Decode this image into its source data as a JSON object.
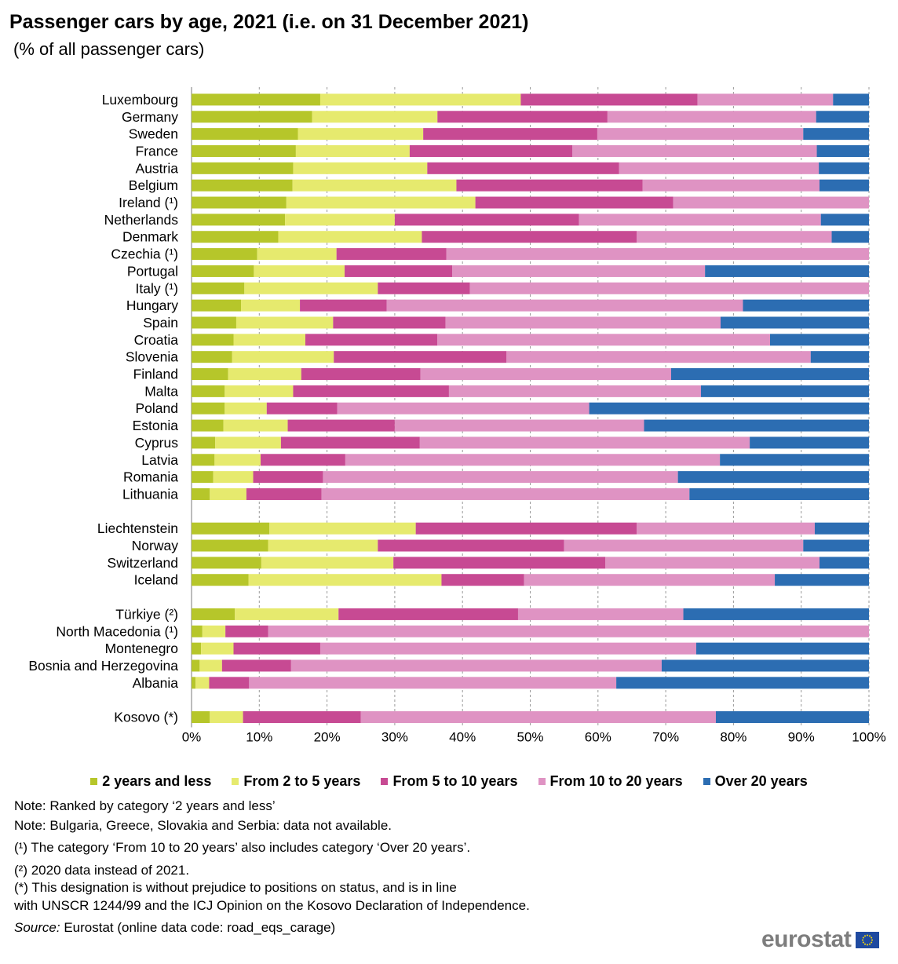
{
  "title": "Passenger cars by age, 2021 (i.e. on 31 December 2021)",
  "subtitle": "(% of all passenger cars)",
  "chart_data": {
    "type": "bar",
    "orientation": "horizontal",
    "stacked": true,
    "xlim": [
      0,
      100
    ],
    "x_ticks": [
      "0%",
      "10%",
      "20%",
      "30%",
      "40%",
      "50%",
      "60%",
      "70%",
      "80%",
      "90%",
      "100%"
    ],
    "grid": "vertical dashed",
    "legend_position": "bottom",
    "series_names": [
      "2 years and less",
      "From 2 to 5 years",
      "From 5 to 10 years",
      "From 10 to 20 years",
      "Over 20 years"
    ],
    "colors": [
      "#b6c62a",
      "#e6ea6e",
      "#c74a93",
      "#df93c3",
      "#2c6db2"
    ],
    "groups": [
      [
        {
          "label": "Luxembourg",
          "values": [
            19.0,
            29.6,
            26.1,
            20.0,
            5.3
          ]
        },
        {
          "label": "Germany",
          "values": [
            17.8,
            18.5,
            25.1,
            30.8,
            7.8
          ]
        },
        {
          "label": "Sweden",
          "values": [
            15.7,
            18.5,
            25.7,
            30.4,
            9.7
          ]
        },
        {
          "label": "France",
          "values": [
            15.4,
            16.8,
            24.0,
            36.1,
            7.7
          ]
        },
        {
          "label": "Austria",
          "values": [
            15.0,
            19.8,
            28.3,
            29.5,
            7.4
          ]
        },
        {
          "label": "Belgium",
          "values": [
            14.9,
            24.2,
            27.5,
            26.1,
            7.3
          ]
        },
        {
          "label": "Ireland (¹)",
          "values": [
            14.0,
            27.9,
            29.2,
            28.9,
            0
          ]
        },
        {
          "label": "Netherlands",
          "values": [
            13.8,
            16.2,
            27.2,
            35.7,
            7.1
          ]
        },
        {
          "label": "Denmark",
          "values": [
            12.8,
            21.2,
            31.7,
            28.8,
            5.5
          ]
        },
        {
          "label": "Czechia (¹)",
          "values": [
            9.7,
            11.7,
            16.2,
            62.4,
            0
          ]
        },
        {
          "label": "Portugal",
          "values": [
            9.2,
            13.4,
            15.9,
            37.3,
            24.2
          ]
        },
        {
          "label": "Italy (¹)",
          "values": [
            7.8,
            19.7,
            13.6,
            58.9,
            0
          ]
        },
        {
          "label": "Hungary",
          "values": [
            7.3,
            8.7,
            12.8,
            52.6,
            18.6
          ]
        },
        {
          "label": "Spain",
          "values": [
            6.6,
            14.3,
            16.6,
            40.6,
            21.9
          ]
        },
        {
          "label": "Croatia",
          "values": [
            6.2,
            10.6,
            19.5,
            49.1,
            14.6
          ]
        },
        {
          "label": "Slovenia",
          "values": [
            6.0,
            15.0,
            25.5,
            44.9,
            8.6
          ]
        },
        {
          "label": "Finland",
          "values": [
            5.4,
            10.8,
            17.6,
            37.0,
            29.2
          ]
        },
        {
          "label": "Malta",
          "values": [
            4.9,
            10.1,
            23.0,
            37.2,
            24.8
          ]
        },
        {
          "label": "Poland",
          "values": [
            4.9,
            6.2,
            10.4,
            37.2,
            41.3
          ]
        },
        {
          "label": "Estonia",
          "values": [
            4.7,
            9.5,
            15.8,
            36.8,
            33.2
          ]
        },
        {
          "label": "Cyprus",
          "values": [
            3.5,
            9.7,
            20.5,
            48.7,
            17.6
          ]
        },
        {
          "label": "Latvia",
          "values": [
            3.4,
            6.8,
            12.5,
            55.3,
            22.0
          ]
        },
        {
          "label": "Romania",
          "values": [
            3.2,
            5.9,
            10.3,
            52.4,
            28.2
          ]
        },
        {
          "label": "Lithuania",
          "values": [
            2.7,
            5.4,
            11.1,
            54.3,
            26.5
          ]
        }
      ],
      [
        {
          "label": "Liechtenstein",
          "values": [
            11.5,
            21.6,
            32.6,
            26.3,
            8.0
          ]
        },
        {
          "label": "Norway",
          "values": [
            11.3,
            16.2,
            27.5,
            35.3,
            9.7
          ]
        },
        {
          "label": "Switzerland",
          "values": [
            10.3,
            19.5,
            31.3,
            31.6,
            7.3
          ]
        },
        {
          "label": "Iceland",
          "values": [
            8.4,
            28.5,
            12.2,
            37.0,
            13.9
          ]
        }
      ],
      [
        {
          "label": "Türkiye (²)",
          "values": [
            6.4,
            15.3,
            26.5,
            24.4,
            27.4
          ]
        },
        {
          "label": "North Macedonia (¹)",
          "values": [
            1.6,
            3.4,
            6.3,
            88.7,
            0
          ]
        },
        {
          "label": "Montenegro",
          "values": [
            1.4,
            4.8,
            12.8,
            55.5,
            25.5
          ]
        },
        {
          "label": "Bosnia and Herzegovina",
          "values": [
            1.2,
            3.3,
            10.2,
            54.7,
            30.6
          ]
        },
        {
          "label": "Albania",
          "values": [
            0.6,
            2.0,
            5.9,
            54.2,
            37.3
          ]
        }
      ],
      [
        {
          "label": "Kosovo (*)",
          "values": [
            2.7,
            4.9,
            17.4,
            52.4,
            22.6
          ]
        }
      ]
    ]
  },
  "notes": [
    "Note: Ranked by category ‘2 years and less’",
    "Note: Bulgaria, Greece, Slovakia and Serbia: data not available.",
    "(¹) The category ‘From 10 to 20 years’ also includes category ‘Over 20 years’.",
    "(²) 2020 data instead of 2021.",
    "(*) This designation is without prejudice to positions on status, and is in line",
    "with UNSCR 1244/99 and the ICJ Opinion on the Kosovo Declaration of Independence."
  ],
  "source_label": "Source:",
  "source_text": " Eurostat (online data code: road_eqs_carage)",
  "brand": "eurostat"
}
